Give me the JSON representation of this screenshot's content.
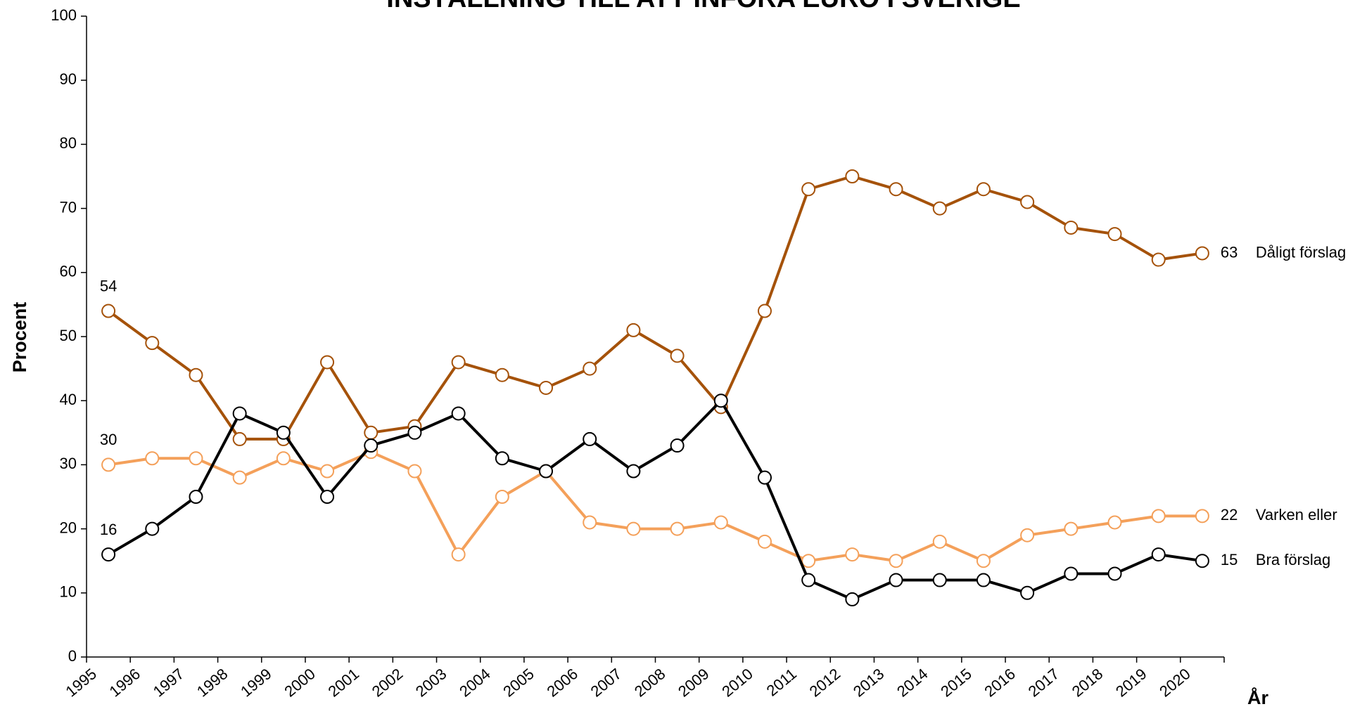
{
  "chart_data": {
    "type": "line",
    "title": "INSTÄLLNING TILL ATT INFÖRA EURO I SVERIGE",
    "y_label": "Procent",
    "x_label": "År",
    "categories": [
      "1995",
      "1996",
      "1997",
      "1998",
      "1999",
      "2000",
      "2001",
      "2002",
      "2003",
      "2004",
      "2005",
      "2006",
      "2007",
      "2008",
      "2009",
      "2010",
      "2011",
      "2012",
      "2013",
      "2014",
      "2015",
      "2016",
      "2017",
      "2018",
      "2019",
      "2020"
    ],
    "series": [
      {
        "name": "Dåligt förslag",
        "color": "#a5520a",
        "values": [
          54,
          49,
          44,
          34,
          34,
          46,
          35,
          36,
          46,
          44,
          42,
          45,
          51,
          47,
          39,
          54,
          73,
          75,
          73,
          70,
          73,
          71,
          67,
          66,
          62,
          63
        ]
      },
      {
        "name": "Varken eller",
        "color": "#f4a05a",
        "values": [
          30,
          31,
          31,
          28,
          31,
          29,
          32,
          29,
          16,
          25,
          29,
          21,
          20,
          20,
          21,
          18,
          15,
          16,
          15,
          18,
          15,
          19,
          20,
          21,
          22,
          22
        ]
      },
      {
        "name": "Bra förslag",
        "color": "#000000",
        "values": [
          16,
          20,
          25,
          38,
          35,
          25,
          33,
          35,
          38,
          31,
          29,
          34,
          29,
          33,
          40,
          28,
          12,
          9,
          12,
          12,
          12,
          10,
          13,
          13,
          16,
          15
        ]
      }
    ],
    "ylim": [
      0,
      100
    ],
    "yticks": [
      0,
      10,
      20,
      30,
      40,
      50,
      60,
      70,
      80,
      90,
      100
    ],
    "grid": false
  }
}
